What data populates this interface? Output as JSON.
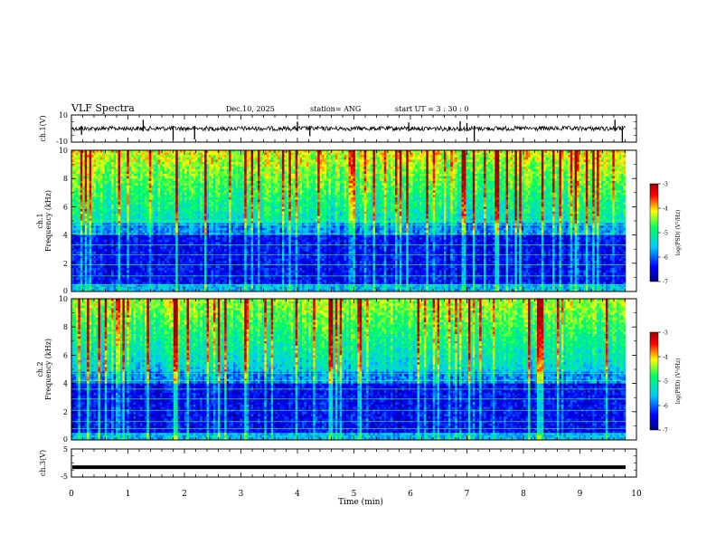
{
  "header": {
    "title": "VLF Spectra",
    "date": "Dec.10, 2025",
    "station": "station= ANG",
    "start": "start  UT =   3  : 30 : 0"
  },
  "chart_data": [
    {
      "type": "line",
      "name": "ch1-waveform",
      "ylabel": "ch.1(V)",
      "ylim": [
        -10,
        10
      ],
      "yticks": [
        "10",
        "-10"
      ],
      "xlim": [
        0,
        10
      ],
      "baseline": 0,
      "spikes_min": [
        0.18,
        1.27,
        1.8,
        2.18,
        4.0,
        4.22,
        5.97,
        6.88,
        7.0,
        7.13,
        9.62,
        9.75
      ]
    },
    {
      "type": "heatmap",
      "name": "ch1-spectrogram",
      "ylabel": "ch.1\nFrequency  (kHz)",
      "ylim": [
        0,
        10
      ],
      "yticks": [
        "0",
        "2",
        "4",
        "6",
        "8",
        "10"
      ],
      "xlim": [
        0,
        9.8
      ],
      "colorbar": {
        "label": "log(PSD) (V²/Hz)",
        "range": [
          -7,
          -3
        ],
        "ticks": [
          "-3",
          "-4",
          "-5",
          "-6",
          "-7"
        ]
      }
    },
    {
      "type": "heatmap",
      "name": "ch2-spectrogram",
      "ylabel": "ch.2\nFrequency  (kHz)",
      "ylim": [
        0,
        10
      ],
      "yticks": [
        "0",
        "2",
        "4",
        "6",
        "8",
        "10"
      ],
      "xlim": [
        0,
        9.8
      ],
      "colorbar": {
        "label": "log(PSD) (V²/Hz)",
        "range": [
          -7,
          -3
        ],
        "ticks": [
          "-3",
          "-4",
          "-5",
          "-6",
          "-7"
        ]
      }
    },
    {
      "type": "line",
      "name": "ch3-waveform",
      "ylabel": "ch.3(V)",
      "ylim": [
        -5,
        5
      ],
      "yticks": [
        "5",
        "-5"
      ],
      "xlim": [
        0,
        10
      ],
      "values": [
        -1.5,
        -1.5
      ]
    }
  ],
  "xaxis": {
    "label": "Time  (min)",
    "ticks": [
      "0",
      "1",
      "2",
      "3",
      "4",
      "5",
      "6",
      "7",
      "8",
      "9",
      "10"
    ]
  },
  "colors": {
    "colormap": [
      "#000080",
      "#0000ff",
      "#00c8ff",
      "#00ff60",
      "#ffff00",
      "#ff0000",
      "#a00000"
    ]
  }
}
